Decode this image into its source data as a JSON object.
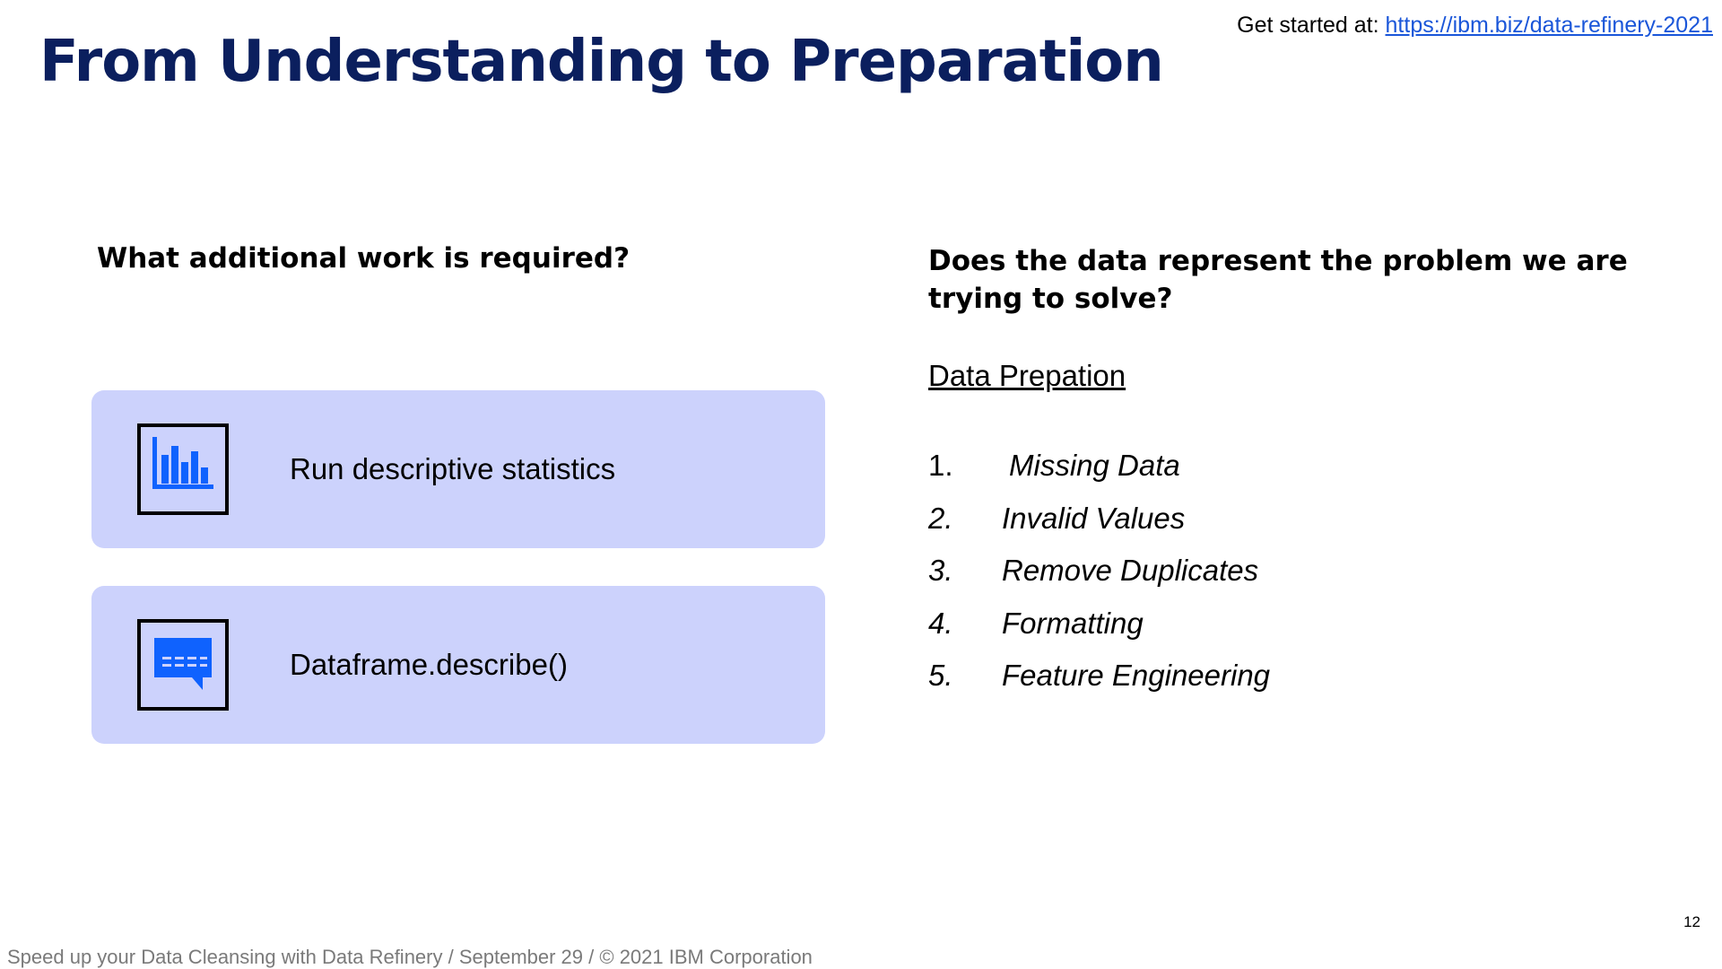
{
  "header": {
    "get_started_label": "Get started at:",
    "get_started_link": "https://ibm.biz/data-refinery-2021",
    "title": "From Understanding to Preparation"
  },
  "left": {
    "heading": "What additional work is required?",
    "cards": [
      {
        "icon": "bar-chart-icon",
        "label": "Run descriptive statistics"
      },
      {
        "icon": "chat-bubble-icon",
        "label": "Dataframe.describe()"
      }
    ]
  },
  "right": {
    "heading": "Does the data represent the problem we are trying to solve?",
    "prep_title": "Data Prepation",
    "items": [
      {
        "num": "1.",
        "label": "Missing Data"
      },
      {
        "num": "2.",
        "label": "Invalid Values"
      },
      {
        "num": "3.",
        "label": "Remove Duplicates"
      },
      {
        "num": "4.",
        "label": "Formatting"
      },
      {
        "num": "5.",
        "label": "Feature Engineering"
      }
    ]
  },
  "footer": {
    "page_number": "12",
    "text": "Speed up your Data Cleansing with Data Refinery / September 29 / © 2021 IBM Corporation"
  },
  "colors": {
    "title": "#0b1f5e",
    "card_background": "#ccd2fc",
    "icon_blue": "#0f62fe",
    "link": "#1a56d9",
    "footer_text": "#7a7a7a"
  }
}
